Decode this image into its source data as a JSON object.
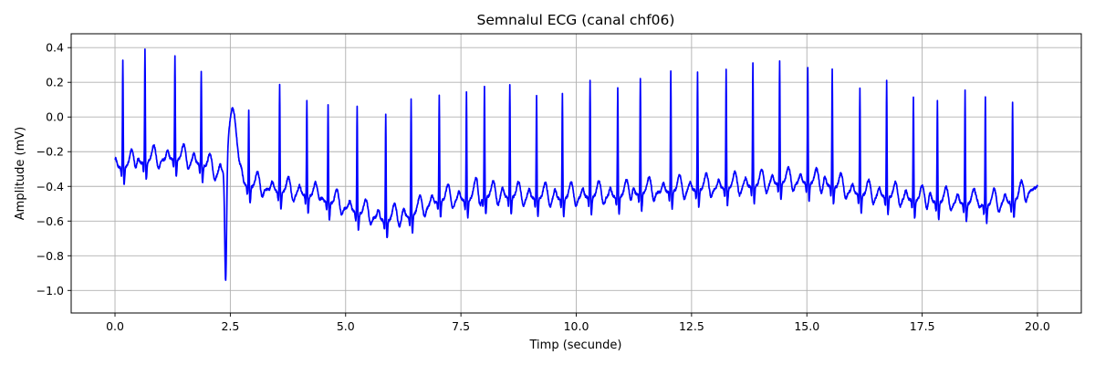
{
  "chart_data": {
    "type": "line",
    "title": "Semnalul ECG (canal chf06)",
    "xlabel": "Timp (secunde)",
    "ylabel": "Amplitude (mV)",
    "xlim": [
      -0.95,
      20.95
    ],
    "ylim": [
      -1.13,
      0.48
    ],
    "x_ticks": [
      0.0,
      2.5,
      5.0,
      7.5,
      10.0,
      12.5,
      15.0,
      17.5,
      20.0
    ],
    "x_tick_labels": [
      "0.0",
      "2.5",
      "5.0",
      "7.5",
      "10.0",
      "12.5",
      "15.0",
      "17.5",
      "20.0"
    ],
    "y_ticks": [
      -1.0,
      -0.8,
      -0.6,
      -0.4,
      -0.2,
      0.0,
      0.2,
      0.4
    ],
    "y_tick_labels": [
      "−1.0",
      "−0.8",
      "−0.6",
      "−0.4",
      "−0.2",
      "0.0",
      "0.2",
      "0.4"
    ],
    "grid": true,
    "series": [
      {
        "color": "#0000ff",
        "beats": [
          {
            "t": 0.17,
            "peak": 0.34,
            "base": -0.29
          },
          {
            "t": 0.65,
            "peak": 0.4,
            "base": -0.26
          },
          {
            "t": 1.3,
            "peak": 0.36,
            "base": -0.24
          },
          {
            "t": 1.87,
            "peak": 0.28,
            "base": -0.27
          },
          {
            "t": 2.4,
            "peak": -1.05,
            "base": -0.36
          },
          {
            "t": 2.9,
            "peak": 0.05,
            "base": -0.4
          },
          {
            "t": 3.57,
            "peak": 0.2,
            "base": -0.43
          },
          {
            "t": 4.16,
            "peak": 0.11,
            "base": -0.45
          },
          {
            "t": 4.62,
            "peak": 0.08,
            "base": -0.49
          },
          {
            "t": 5.25,
            "peak": 0.08,
            "base": -0.55
          },
          {
            "t": 5.87,
            "peak": 0.03,
            "base": -0.6
          },
          {
            "t": 6.42,
            "peak": 0.11,
            "base": -0.57
          },
          {
            "t": 7.03,
            "peak": 0.14,
            "base": -0.48
          },
          {
            "t": 7.62,
            "peak": 0.15,
            "base": -0.48
          },
          {
            "t": 8.01,
            "peak": 0.19,
            "base": -0.46
          },
          {
            "t": 8.56,
            "peak": 0.2,
            "base": -0.46
          },
          {
            "t": 9.14,
            "peak": 0.14,
            "base": -0.47
          },
          {
            "t": 9.7,
            "peak": 0.14,
            "base": -0.47
          },
          {
            "t": 10.3,
            "peak": 0.22,
            "base": -0.46
          },
          {
            "t": 10.9,
            "peak": 0.18,
            "base": -0.46
          },
          {
            "t": 11.39,
            "peak": 0.23,
            "base": -0.44
          },
          {
            "t": 12.05,
            "peak": 0.27,
            "base": -0.43
          },
          {
            "t": 12.63,
            "peak": 0.27,
            "base": -0.42
          },
          {
            "t": 13.25,
            "peak": 0.28,
            "base": -0.41
          },
          {
            "t": 13.83,
            "peak": 0.32,
            "base": -0.4
          },
          {
            "t": 14.41,
            "peak": 0.34,
            "base": -0.38
          },
          {
            "t": 15.02,
            "peak": 0.29,
            "base": -0.38
          },
          {
            "t": 15.55,
            "peak": 0.29,
            "base": -0.4
          },
          {
            "t": 16.15,
            "peak": 0.18,
            "base": -0.45
          },
          {
            "t": 16.73,
            "peak": 0.22,
            "base": -0.46
          },
          {
            "t": 17.31,
            "peak": 0.13,
            "base": -0.48
          },
          {
            "t": 17.83,
            "peak": 0.1,
            "base": -0.49
          },
          {
            "t": 18.43,
            "peak": 0.16,
            "base": -0.5
          },
          {
            "t": 18.87,
            "peak": 0.13,
            "base": -0.51
          },
          {
            "t": 19.46,
            "peak": 0.09,
            "base": -0.49
          }
        ],
        "end": {
          "t": 20.0,
          "value": -0.4
        }
      }
    ]
  }
}
